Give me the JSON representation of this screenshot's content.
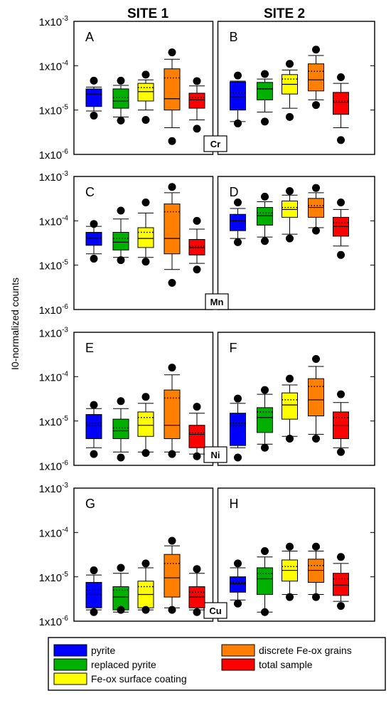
{
  "headers": {
    "site1": "SITE 1",
    "site2": "SITE 2"
  },
  "ylabel": "I0-normalized counts",
  "ytick_labels": [
    {
      "base": "1x10",
      "exp": "-3"
    },
    {
      "base": "1x10",
      "exp": "-4"
    },
    {
      "base": "1x10",
      "exp": "-5"
    },
    {
      "base": "1x10",
      "exp": "-6"
    }
  ],
  "legend": {
    "items": [
      {
        "label": "pyrite",
        "color": "#0000ff"
      },
      {
        "label": "replaced pyrite",
        "color": "#00b000"
      },
      {
        "label": "Fe-ox surface coating",
        "color": "#ffff00"
      },
      {
        "label": "discrete Fe-ox grains",
        "color": "#ff8000"
      },
      {
        "label": "total sample",
        "color": "#ff0000"
      }
    ]
  },
  "chart_data": {
    "type": "box",
    "y_scale": "log",
    "ylim": [
      1e-06,
      0.001
    ],
    "series_order": [
      "pyrite",
      "replaced pyrite",
      "Fe-ox surface coating",
      "discrete Fe-ox grains",
      "total sample"
    ],
    "rows": [
      {
        "element": "Cr",
        "panels": [
          {
            "label": "A",
            "site": "SITE 1",
            "boxes": [
              {
                "q1": 1.2e-05,
                "median": 2.3e-05,
                "q3": 3e-05,
                "mean": 2.3e-05,
                "wlo": 9.5e-06,
                "whi": 3.3e-05,
                "out_lo": 7.5e-06,
                "out_hi": 4.6e-05
              },
              {
                "q1": 1.1e-05,
                "median": 1.6e-05,
                "q3": 3e-05,
                "mean": 1.9e-05,
                "wlo": 7e-06,
                "whi": 3.6e-05,
                "out_lo": 5.8e-06,
                "out_hi": 4.6e-05
              },
              {
                "q1": 1.6e-05,
                "median": 2.6e-05,
                "q3": 4e-05,
                "mean": 3.2e-05,
                "wlo": 1e-05,
                "whi": 4.8e-05,
                "out_lo": 6e-06,
                "out_hi": 6.3e-05
              },
              {
                "q1": 1e-05,
                "median": 1.8e-05,
                "q3": 8.5e-05,
                "mean": 5.3e-05,
                "wlo": 4e-06,
                "whi": 0.00014,
                "out_lo": 2e-06,
                "out_hi": 0.0002
              },
              {
                "q1": 1.1e-05,
                "median": 1.7e-05,
                "q3": 2.4e-05,
                "mean": 1.9e-05,
                "wlo": 6e-06,
                "whi": 3.5e-05,
                "out_lo": 3.8e-06,
                "out_hi": 4.5e-05
              }
            ]
          },
          {
            "label": "B",
            "site": "SITE 2",
            "boxes": [
              {
                "q1": 1e-05,
                "median": 2e-05,
                "q3": 4.3e-05,
                "mean": 2.5e-05,
                "wlo": 5.5e-06,
                "whi": 4.5e-05,
                "out_lo": 5e-06,
                "out_hi": 6e-05
              },
              {
                "q1": 1.7e-05,
                "median": 3e-05,
                "q3": 4.2e-05,
                "mean": 3e-05,
                "wlo": 9e-06,
                "whi": 5e-05,
                "out_lo": 5.5e-06,
                "out_hi": 6.5e-05
              },
              {
                "q1": 2.3e-05,
                "median": 3.8e-05,
                "q3": 6.3e-05,
                "mean": 5e-05,
                "wlo": 1.1e-05,
                "whi": 8e-05,
                "out_lo": 7e-06,
                "out_hi": 0.00011
              },
              {
                "q1": 2.7e-05,
                "median": 4.8e-05,
                "q3": 0.00011,
                "mean": 7.5e-05,
                "wlo": 1.7e-05,
                "whi": 0.00017,
                "out_lo": 1.3e-05,
                "out_hi": 0.00023
              },
              {
                "q1": 8e-06,
                "median": 1.5e-05,
                "q3": 2.5e-05,
                "mean": 1.6e-05,
                "wlo": 4e-06,
                "whi": 4e-05,
                "out_lo": 2.1e-06,
                "out_hi": 5.5e-05
              }
            ]
          }
        ]
      },
      {
        "element": "Mn",
        "panels": [
          {
            "label": "C",
            "site": "SITE 1",
            "boxes": [
              {
                "q1": 2.8e-05,
                "median": 4e-05,
                "q3": 5.5e-05,
                "mean": 4e-05,
                "wlo": 1.8e-05,
                "whi": 7.5e-05,
                "out_lo": 1.4e-05,
                "out_hi": 8.5e-05
              },
              {
                "q1": 2.2e-05,
                "median": 3.3e-05,
                "q3": 5.5e-05,
                "mean": 4e-05,
                "wlo": 1.5e-05,
                "whi": 0.00011,
                "out_lo": 1.3e-05,
                "out_hi": 0.00017
              },
              {
                "q1": 2.5e-05,
                "median": 4e-05,
                "q3": 7e-05,
                "mean": 5.5e-05,
                "wlo": 1.5e-05,
                "whi": 0.00015,
                "out_lo": 1.2e-05,
                "out_hi": 0.00026
              },
              {
                "q1": 1.8e-05,
                "median": 4e-05,
                "q3": 0.00024,
                "mean": 0.00016,
                "wlo": 8e-06,
                "whi": 0.00043,
                "out_lo": 4e-06,
                "out_hi": 0.00058
              },
              {
                "q1": 1.7e-05,
                "median": 2.5e-05,
                "q3": 3.8e-05,
                "mean": 2.7e-05,
                "wlo": 1.1e-05,
                "whi": 6.5e-05,
                "out_lo": 8e-06,
                "out_hi": 0.0001
              }
            ]
          },
          {
            "label": "D",
            "site": "SITE 2",
            "boxes": [
              {
                "q1": 6e-05,
                "median": 0.0001,
                "q3": 0.00014,
                "mean": 0.0001,
                "wlo": 4e-05,
                "whi": 0.00019,
                "out_lo": 3.3e-05,
                "out_hi": 0.00026
              },
              {
                "q1": 8e-05,
                "median": 0.00013,
                "q3": 0.0002,
                "mean": 0.00015,
                "wlo": 4.3e-05,
                "whi": 0.00027,
                "out_lo": 3.5e-05,
                "out_hi": 0.00035
              },
              {
                "q1": 0.00012,
                "median": 0.00018,
                "q3": 0.00028,
                "mean": 0.0002,
                "wlo": 5e-05,
                "whi": 0.00038,
                "out_lo": 4e-05,
                "out_hi": 0.00047
              },
              {
                "q1": 0.00012,
                "median": 0.0002,
                "q3": 0.00032,
                "mean": 0.00022,
                "wlo": 7e-05,
                "whi": 0.00043,
                "out_lo": 6e-05,
                "out_hi": 0.00055
              },
              {
                "q1": 4.5e-05,
                "median": 7.5e-05,
                "q3": 0.00012,
                "mean": 9e-05,
                "wlo": 2.7e-05,
                "whi": 0.00018,
                "out_lo": 1.7e-05,
                "out_hi": 0.00026
              }
            ]
          }
        ]
      },
      {
        "element": "Ni",
        "panels": [
          {
            "label": "E",
            "site": "SITE 1",
            "boxes": [
              {
                "q1": 4e-06,
                "median": 8e-06,
                "q3": 1.4e-05,
                "mean": 9e-06,
                "wlo": 2.5e-06,
                "whi": 1.9e-05,
                "out_lo": 1.8e-06,
                "out_hi": 2.3e-05
              },
              {
                "q1": 4e-06,
                "median": 6e-06,
                "q3": 1.1e-05,
                "mean": 7e-06,
                "wlo": 2e-06,
                "whi": 1.9e-05,
                "out_lo": 1.5e-06,
                "out_hi": 2.8e-05
              },
              {
                "q1": 4.5e-06,
                "median": 8e-06,
                "q3": 1.6e-05,
                "mean": 1.2e-05,
                "wlo": 2e-06,
                "whi": 2.5e-05,
                "out_lo": 1.9e-06,
                "out_hi": 3.5e-05
              },
              {
                "q1": 4e-06,
                "median": 8e-06,
                "q3": 5e-05,
                "mean": 3.3e-05,
                "wlo": 2e-06,
                "whi": 0.00011,
                "out_lo": 1.8e-06,
                "out_hi": 0.00016
              },
              {
                "q1": 2.5e-06,
                "median": 5e-06,
                "q3": 8e-06,
                "mean": 5.5e-06,
                "wlo": 1.8e-06,
                "whi": 1.5e-05,
                "out_lo": 1.6e-06,
                "out_hi": 2.1e-05
              }
            ]
          },
          {
            "label": "F",
            "site": "SITE 2",
            "boxes": [
              {
                "q1": 2.8e-06,
                "median": 8e-06,
                "q3": 1.5e-05,
                "mean": 9e-06,
                "wlo": 2.5e-06,
                "whi": 2.5e-05,
                "out_lo": 1.5e-06,
                "out_hi": 3.2e-05
              },
              {
                "q1": 5.5e-06,
                "median": 1.2e-05,
                "q3": 2e-05,
                "mean": 1.6e-05,
                "wlo": 3e-06,
                "whi": 4e-05,
                "out_lo": 2.5e-06,
                "out_hi": 5e-05
              },
              {
                "q1": 1.1e-05,
                "median": 2.3e-05,
                "q3": 4.3e-05,
                "mean": 3e-05,
                "wlo": 4.5e-06,
                "whi": 6.5e-05,
                "out_lo": 4e-06,
                "out_hi": 9e-05
              },
              {
                "q1": 1.3e-05,
                "median": 3e-05,
                "q3": 9e-05,
                "mean": 6e-05,
                "wlo": 5e-06,
                "whi": 0.00017,
                "out_lo": 4e-06,
                "out_hi": 0.00025
              },
              {
                "q1": 4e-06,
                "median": 8e-06,
                "q3": 1.6e-05,
                "mean": 1.2e-05,
                "wlo": 2.5e-06,
                "whi": 2.6e-05,
                "out_lo": 2e-06,
                "out_hi": 4e-05
              }
            ]
          }
        ]
      },
      {
        "element": "Cu",
        "panels": [
          {
            "label": "G",
            "site": "SITE 1",
            "boxes": [
              {
                "q1": 2e-06,
                "median": 4e-06,
                "q3": 7.5e-06,
                "mean": 5e-06,
                "wlo": 1.8e-06,
                "whi": 1.1e-05,
                "out_lo": 1.6e-06,
                "out_hi": 1.4e-05
              },
              {
                "q1": 1.8e-06,
                "median": 3.5e-06,
                "q3": 6e-06,
                "mean": 5e-06,
                "wlo": 1.6e-06,
                "whi": 1.2e-05,
                "out_lo": 1.8e-06,
                "out_hi": 1.6e-05
              },
              {
                "q1": 2e-06,
                "median": 4e-06,
                "q3": 8e-06,
                "mean": 6e-06,
                "wlo": 1.8e-06,
                "whi": 1.6e-05,
                "out_lo": 1.8e-06,
                "out_hi": 2e-05
              },
              {
                "q1": 3.5e-06,
                "median": 9.5e-06,
                "q3": 3.2e-05,
                "mean": 2e-05,
                "wlo": 2e-06,
                "whi": 5e-05,
                "out_lo": 1.8e-06,
                "out_hi": 6.5e-05
              },
              {
                "q1": 2e-06,
                "median": 3.5e-06,
                "q3": 6e-06,
                "mean": 4.5e-06,
                "wlo": 1.8e-06,
                "whi": 1.2e-05,
                "out_lo": 1.6e-06,
                "out_hi": 1.5e-05
              }
            ]
          },
          {
            "label": "H",
            "site": "SITE 2",
            "boxes": [
              {
                "q1": 4.5e-06,
                "median": 7e-06,
                "q3": 1e-05,
                "mean": 7.5e-06,
                "wlo": 3e-06,
                "whi": 1.6e-05,
                "out_lo": 2.5e-06,
                "out_hi": 2e-05
              },
              {
                "q1": 4e-06,
                "median": 9e-06,
                "q3": 1.6e-05,
                "mean": 1.2e-05,
                "wlo": 1.6e-06,
                "whi": 2.8e-05,
                "out_lo": 1.6e-06,
                "out_hi": 3.8e-05
              },
              {
                "q1": 8e-06,
                "median": 1.4e-05,
                "q3": 2.4e-05,
                "mean": 1.7e-05,
                "wlo": 4e-06,
                "whi": 3.8e-05,
                "out_lo": 3.5e-06,
                "out_hi": 4.8e-05
              },
              {
                "q1": 7.5e-06,
                "median": 1.4e-05,
                "q3": 2.5e-05,
                "mean": 1.8e-05,
                "wlo": 4e-06,
                "whi": 3.8e-05,
                "out_lo": 3.5e-06,
                "out_hi": 4.8e-05
              },
              {
                "q1": 3.8e-06,
                "median": 6.5e-06,
                "q3": 1.2e-05,
                "mean": 9e-06,
                "wlo": 2.8e-06,
                "whi": 2e-05,
                "out_lo": 2.2e-06,
                "out_hi": 2.8e-05
              }
            ]
          }
        ]
      }
    ]
  }
}
